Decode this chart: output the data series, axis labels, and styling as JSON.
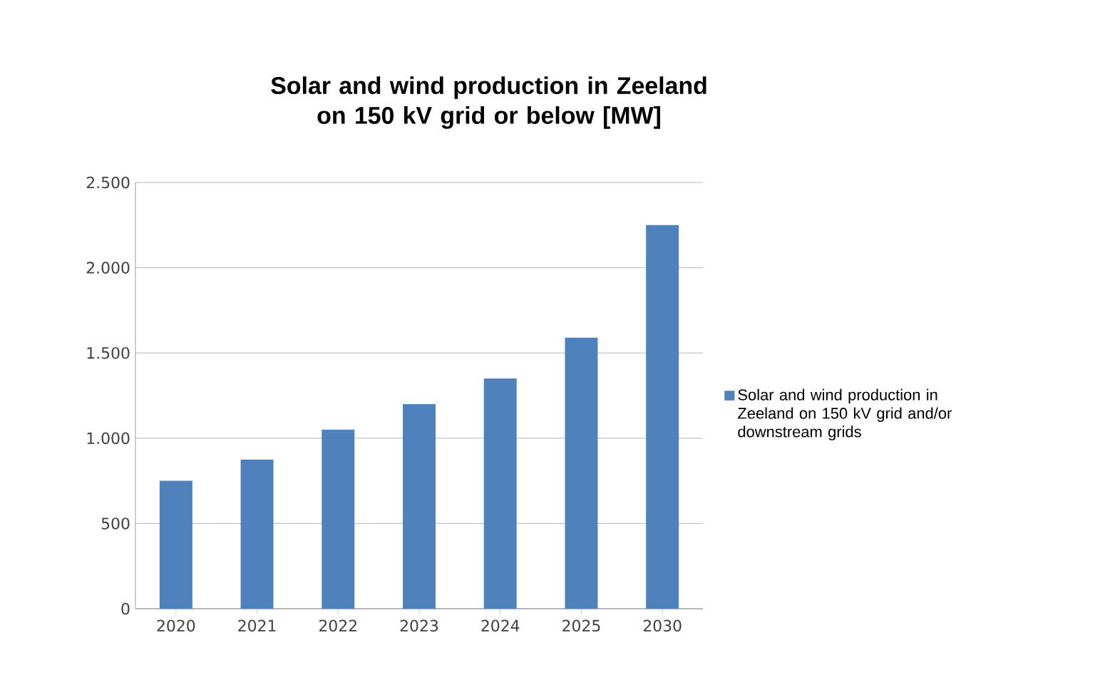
{
  "chart_data": {
    "type": "bar",
    "title": "Solar and wind production in Zeeland on 150 kV grid or below [MW]",
    "categories": [
      "2020",
      "2021",
      "2022",
      "2023",
      "2024",
      "2025",
      "2030"
    ],
    "series": [
      {
        "name": "Solar and wind production in Zeeland on 150 kV grid and/or downstream grids",
        "color": "#4f81bd",
        "values": [
          750,
          875,
          1050,
          1200,
          1350,
          1590,
          2250
        ]
      }
    ],
    "ylim": [
      0,
      2500
    ],
    "yticks": [
      0,
      500,
      {
        "value": 1000,
        "label": "1.000"
      },
      {
        "value": 1500,
        "label": "1.500"
      },
      {
        "value": 2000,
        "label": "2.000"
      },
      {
        "value": 2500,
        "label": "2.500"
      }
    ],
    "grid": "y",
    "legend": "right"
  }
}
